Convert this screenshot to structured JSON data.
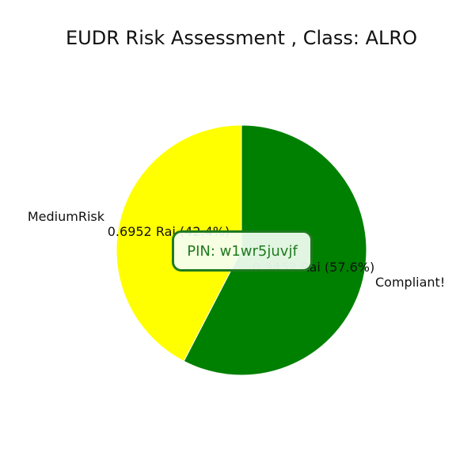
{
  "chart_data": {
    "type": "pie",
    "title": "EUDR Risk Assessment , Class: ALRO",
    "categories": [
      "Compliant!",
      "MediumRisk"
    ],
    "values": [
      0.9452,
      0.6952
    ],
    "value_labels": [
      "0.9452 Rai (57.6%)",
      "0.6952 Rai (42.4%)"
    ],
    "percentages": [
      57.6,
      42.4
    ],
    "colors": [
      "#008000",
      "#ffff00"
    ],
    "unit": "Rai"
  },
  "annotation": {
    "pin_text": "PIN: w1wr5juvjf",
    "border_color": "#1f7a1f",
    "text_color": "#1f7a1f"
  }
}
